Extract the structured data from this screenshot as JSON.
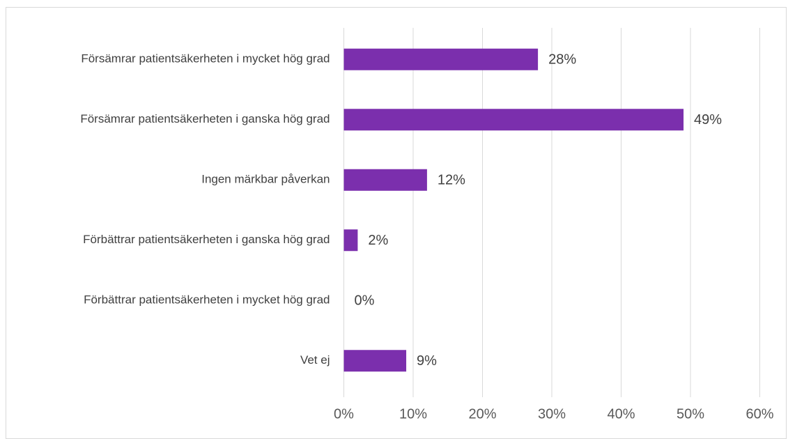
{
  "chart_data": {
    "type": "bar",
    "orientation": "horizontal",
    "categories": [
      "Försämrar patientsäkerheten i mycket hög grad",
      "Försämrar patientsäkerheten i ganska hög grad",
      "Ingen märkbar påverkan",
      "Förbättrar patientsäkerheten i ganska hög grad",
      "Förbättrar patientsäkerheten i mycket hög grad",
      "Vet ej"
    ],
    "values": [
      28,
      49,
      12,
      2,
      0,
      9
    ],
    "value_labels": [
      "28%",
      "49%",
      "12%",
      "2%",
      "0%",
      "9%"
    ],
    "xlim": [
      0,
      60
    ],
    "x_ticks": [
      0,
      10,
      20,
      30,
      40,
      50,
      60
    ],
    "x_tick_labels": [
      "0%",
      "10%",
      "20%",
      "30%",
      "40%",
      "50%",
      "60%"
    ],
    "grid": "vertical",
    "legend": "none",
    "bar_color": "#7b2fad",
    "grid_color": "#d9d9d9",
    "title": "",
    "xlabel": "",
    "ylabel": ""
  }
}
